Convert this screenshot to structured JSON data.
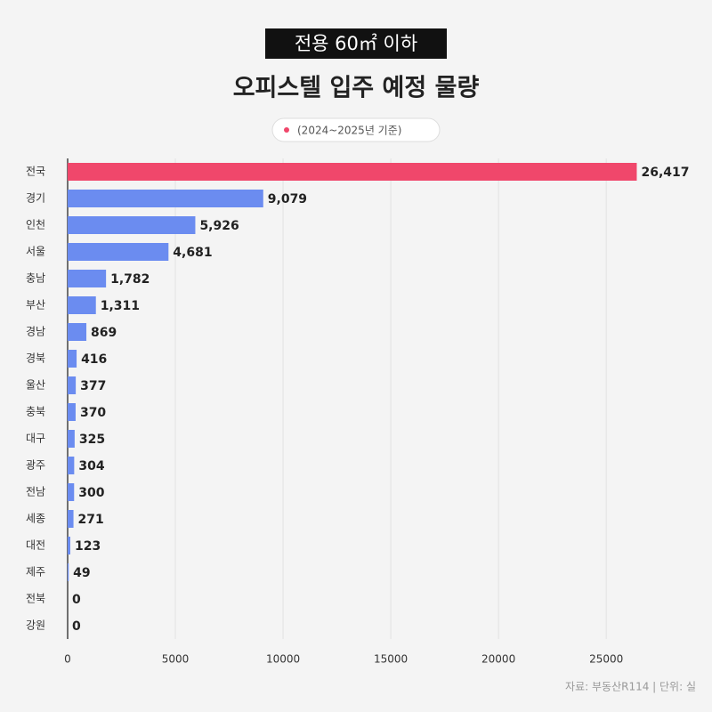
{
  "chart_data": {
    "type": "hbar",
    "badge": "전용 60㎡ 이하",
    "title": "오피스텔 입주 예정 물량",
    "legend_label": "(2024~2025년 기준)",
    "source": "자료: 부동산R114 | 단위: 실",
    "categories": [
      "전국",
      "경기",
      "인천",
      "서울",
      "충남",
      "부산",
      "경남",
      "경북",
      "울산",
      "충북",
      "대구",
      "광주",
      "전남",
      "세종",
      "대전",
      "제주",
      "전북",
      "강원"
    ],
    "values": [
      26417,
      9079,
      5926,
      4681,
      1782,
      1311,
      869,
      416,
      377,
      370,
      325,
      304,
      300,
      271,
      123,
      49,
      0,
      0
    ],
    "value_labels": [
      "26,417",
      "9,079",
      "5,926",
      "4,681",
      "1,782",
      "1,311",
      "869",
      "416",
      "377",
      "370",
      "325",
      "304",
      "300",
      "271",
      "123",
      "49",
      "0",
      "0"
    ],
    "colors": [
      "#f0476b",
      "#6b8cf0",
      "#6b8cf0",
      "#6b8cf0",
      "#6b8cf0",
      "#6b8cf0",
      "#6b8cf0",
      "#6b8cf0",
      "#6b8cf0",
      "#6b8cf0",
      "#6b8cf0",
      "#6b8cf0",
      "#6b8cf0",
      "#6b8cf0",
      "#6b8cf0",
      "#6b8cf0",
      "#6b8cf0",
      "#6b8cf0"
    ],
    "xlim": [
      0,
      29000
    ],
    "xticks": [
      0,
      5000,
      10000,
      15000,
      20000,
      25000
    ],
    "grid": true
  }
}
